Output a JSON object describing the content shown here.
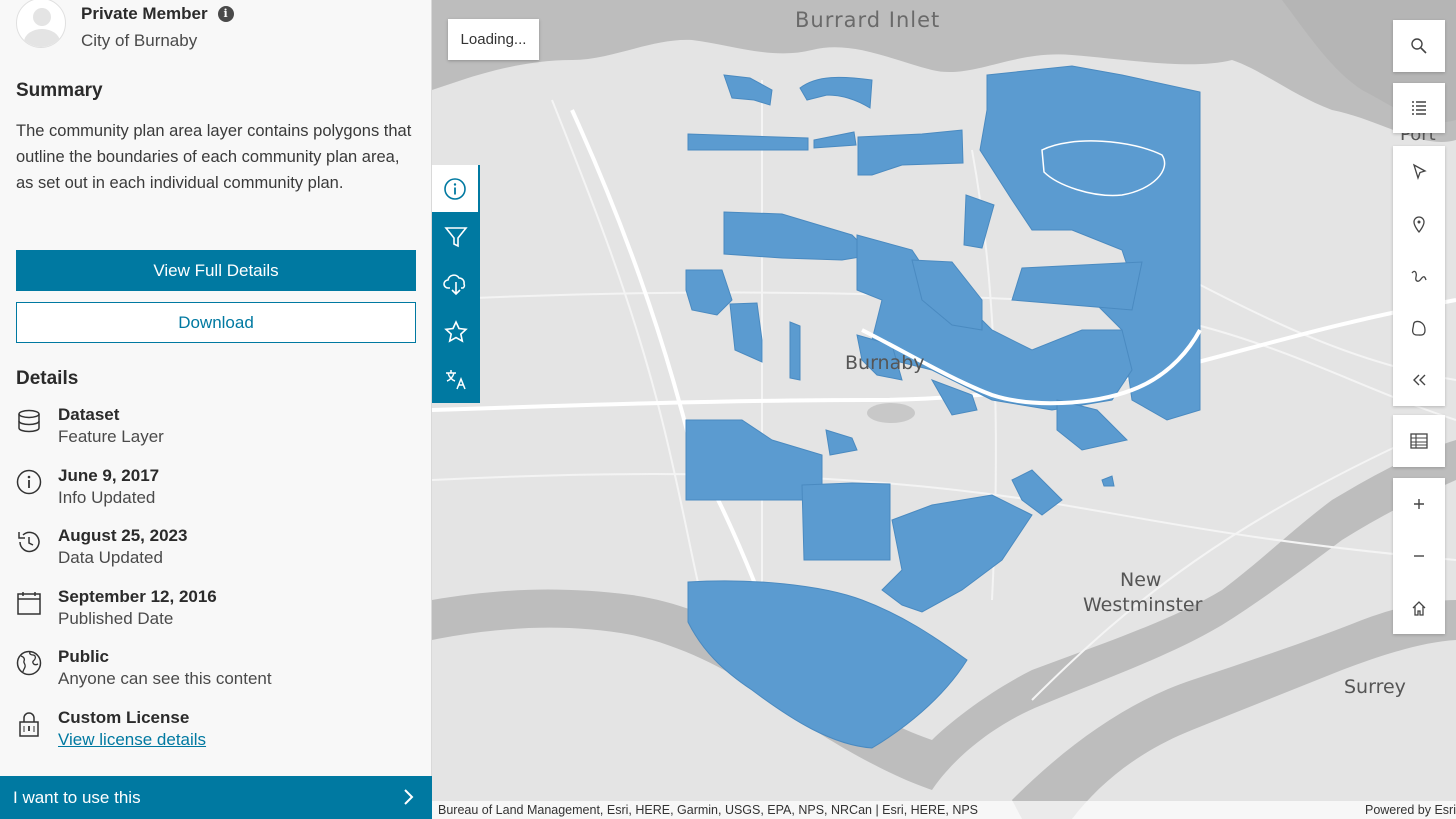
{
  "owner": {
    "name": "Private Member",
    "org": "City of Burnaby"
  },
  "summary": {
    "heading": "Summary",
    "text": "The community plan area layer contains polygons that outline the boundaries of each community plan area, as set out in each individual community plan."
  },
  "actions": {
    "primary": "View Full Details",
    "secondary": "Download"
  },
  "details": {
    "heading": "Details",
    "items": [
      {
        "title": "Dataset",
        "sub": "Feature Layer",
        "icon": "database-icon"
      },
      {
        "title": "June 9, 2017",
        "sub": "Info Updated",
        "icon": "info-icon"
      },
      {
        "title": "August 25, 2023",
        "sub": "Data Updated",
        "icon": "history-icon"
      },
      {
        "title": "September 12, 2016",
        "sub": "Published Date",
        "icon": "calendar-icon"
      },
      {
        "title": "Public",
        "sub": "Anyone can see this content",
        "icon": "globe-icon"
      },
      {
        "title": "Custom License",
        "sub": "View license details",
        "icon": "lock-icon"
      }
    ]
  },
  "cta": {
    "label": "I want to use this"
  },
  "tool_strip": [
    "info-icon",
    "filter-icon",
    "cloud-download-icon",
    "star-icon",
    "translate-icon"
  ],
  "map": {
    "loading": "Loading...",
    "labels": {
      "burrard": "Burrard Inlet",
      "port_moody": "Port M",
      "burnaby": "Burnaby",
      "new": "New",
      "westminster": "Westminster",
      "surrey": "Surrey"
    },
    "attribution": "Bureau of Land Management, Esri, HERE, Garmin, USGS, EPA, NPS, NRCan | Esri, HERE, NPS",
    "powered": "Powered by Esri",
    "polygon_color": "#5b9bd0"
  },
  "controls": {
    "top": [
      "search-icon",
      "legend-icon"
    ],
    "sketch": [
      "select-arrow-icon",
      "pin-icon",
      "freehand-line-icon",
      "polygon-icon",
      "collapse-icon"
    ],
    "table": [
      "table-icon"
    ],
    "zoom": [
      "zoom-in-icon",
      "zoom-out-icon",
      "home-icon"
    ]
  },
  "colors": {
    "accent": "#0079a1",
    "panel_bg": "#f8f8f8",
    "map_bg": "#e4e4e4",
    "water": "#bfbfbf"
  }
}
